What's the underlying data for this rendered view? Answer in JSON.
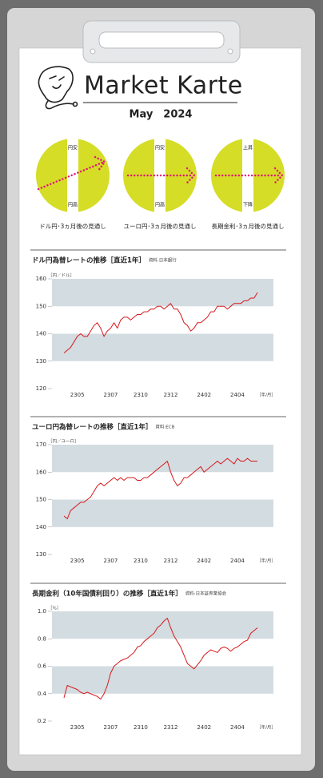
{
  "header": {
    "title": "Market Karte",
    "date": "May　2024"
  },
  "outlooks": [
    {
      "label": "ドル円･3ヵ月後の見通し",
      "top": "円安",
      "bottom": "円高"
    },
    {
      "label": "ユーロ円･3ヵ月後の見通し",
      "top": "円安",
      "bottom": "円高"
    },
    {
      "label": "長期金利･3ヵ月後の見通し",
      "top": "上昇",
      "bottom": "下降"
    }
  ],
  "chart_data": [
    {
      "type": "line",
      "title": "ドル円為替レートの推移［直近1年］",
      "source": "資料:日本銀行",
      "y_label": "［円／ドル］",
      "x_label": "［年/月］",
      "color": "#d7191c",
      "grid": true,
      "categories": [
        null,
        null,
        null,
        null,
        "2305",
        null,
        null,
        null,
        null,
        null,
        null,
        null,
        null,
        null,
        "2307",
        null,
        null,
        null,
        null,
        null,
        null,
        null,
        null,
        "2310",
        null,
        null,
        null,
        null,
        null,
        null,
        null,
        null,
        "2312",
        null,
        null,
        null,
        null,
        null,
        null,
        null,
        null,
        null,
        "2402",
        null,
        null,
        null,
        null,
        null,
        null,
        null,
        null,
        null,
        "2404",
        null,
        null,
        null,
        null,
        null,
        null
      ],
      "values": [
        133,
        134,
        135,
        137,
        139,
        140,
        139,
        139,
        141,
        143,
        144,
        142,
        139,
        141,
        142,
        144,
        142,
        145,
        146,
        146,
        145,
        146,
        147,
        147,
        148,
        148,
        149,
        149,
        150,
        150,
        149,
        150,
        151,
        149,
        149,
        147,
        144,
        143,
        141,
        142,
        144,
        144,
        145,
        146,
        148,
        148,
        150,
        150,
        150,
        149,
        150,
        151,
        151,
        151,
        152,
        152,
        153,
        153,
        155
      ],
      "ylim": [
        120,
        160
      ],
      "yticks": [
        120,
        130,
        140,
        150,
        160
      ]
    },
    {
      "type": "line",
      "title": "ユーロ円為替レートの推移［直近1年］",
      "source": "資料:ECB",
      "y_label": "［円／ユーロ］",
      "x_label": "［年/月］",
      "color": "#d7191c",
      "grid": true,
      "categories": [
        null,
        null,
        null,
        null,
        "2305",
        null,
        null,
        null,
        null,
        null,
        null,
        null,
        null,
        null,
        "2307",
        null,
        null,
        null,
        null,
        null,
        null,
        null,
        null,
        "2310",
        null,
        null,
        null,
        null,
        null,
        null,
        null,
        null,
        "2312",
        null,
        null,
        null,
        null,
        null,
        null,
        null,
        null,
        null,
        "2402",
        null,
        null,
        null,
        null,
        null,
        null,
        null,
        null,
        null,
        "2404",
        null,
        null,
        null,
        null,
        null,
        null
      ],
      "values": [
        144,
        143,
        146,
        147,
        148,
        149,
        149,
        150,
        151,
        153,
        155,
        156,
        155,
        156,
        157,
        158,
        157,
        158,
        157,
        158,
        158,
        158,
        157,
        157,
        158,
        158,
        159,
        160,
        161,
        162,
        163,
        164,
        160,
        157,
        155,
        156,
        158,
        158,
        159,
        160,
        161,
        162,
        160,
        161,
        162,
        163,
        164,
        163,
        164,
        165,
        164,
        163,
        165,
        164,
        164,
        165,
        164,
        164,
        164
      ],
      "ylim": [
        130,
        170
      ],
      "yticks": [
        130,
        140,
        150,
        160,
        170
      ]
    },
    {
      "type": "line",
      "title": "長期金利（10年国債利回り）の推移［直近1年］",
      "source": "資料:日本証券業協会",
      "y_label": "［%］",
      "x_label": "［年/月］",
      "color": "#d7191c",
      "grid": true,
      "categories": [
        null,
        null,
        null,
        null,
        "2305",
        null,
        null,
        null,
        null,
        null,
        null,
        null,
        null,
        null,
        "2307",
        null,
        null,
        null,
        null,
        null,
        null,
        null,
        null,
        "2310",
        null,
        null,
        null,
        null,
        null,
        null,
        null,
        null,
        "2312",
        null,
        null,
        null,
        null,
        null,
        null,
        null,
        null,
        null,
        "2402",
        null,
        null,
        null,
        null,
        null,
        null,
        null,
        null,
        null,
        "2404",
        null,
        null,
        null,
        null,
        null,
        null
      ],
      "values": [
        0.37,
        0.46,
        0.45,
        0.44,
        0.43,
        0.41,
        0.4,
        0.41,
        0.4,
        0.39,
        0.38,
        0.36,
        0.4,
        0.46,
        0.55,
        0.6,
        0.62,
        0.64,
        0.65,
        0.66,
        0.68,
        0.7,
        0.74,
        0.75,
        0.78,
        0.8,
        0.82,
        0.84,
        0.88,
        0.9,
        0.93,
        0.95,
        0.88,
        0.82,
        0.78,
        0.74,
        0.68,
        0.62,
        0.6,
        0.58,
        0.61,
        0.64,
        0.68,
        0.7,
        0.72,
        0.71,
        0.7,
        0.73,
        0.74,
        0.73,
        0.71,
        0.73,
        0.74,
        0.76,
        0.78,
        0.79,
        0.84,
        0.86,
        0.88
      ],
      "ylim": [
        0.2,
        1
      ],
      "yticks": [
        0.2,
        0.4,
        0.6,
        0.8,
        {
          "value": 1,
          "label": "1.0"
        }
      ]
    }
  ]
}
